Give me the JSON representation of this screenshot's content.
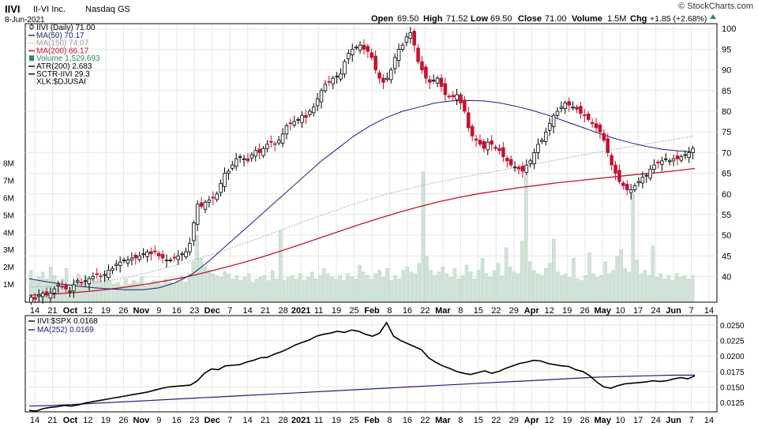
{
  "header": {
    "symbol": "IIVI",
    "company": "II-VI Inc.",
    "exchange": "Nasdaq GS",
    "date": "8-Jun-2021",
    "open_label": "Open",
    "open": "69.50",
    "high_label": "High",
    "high": "71.52",
    "low_label": "Low",
    "low": "69.50",
    "close_label": "Close",
    "close": "71.00",
    "volume_label": "Volume",
    "volume": "1.5M",
    "chg_label": "Chg",
    "chg": "+1.85 (+2.68%)",
    "watermark": "© StockCharts.com"
  },
  "legend_main": [
    {
      "text": "IIVI (Daily) 71.00",
      "color": "#000000",
      "swatch": "candle"
    },
    {
      "text": "MA(50) 70.17",
      "color": "#1a1f7a",
      "swatch": "line"
    },
    {
      "text": "MA(150) 74.07",
      "color": "#999999",
      "swatch": "dotted"
    },
    {
      "text": "MA(200) 66.17",
      "color": "#c8102e",
      "swatch": "line"
    },
    {
      "text": "Volume 1,529,693",
      "color": "#2e8b57",
      "swatch": "bar"
    },
    {
      "text": "ATR(200) 2.683",
      "color": "#000000",
      "swatch": "line"
    },
    {
      "text": "SCTR-IIVI 29.3",
      "color": "#000000",
      "swatch": "line"
    },
    {
      "text": "XLK:$DJUSAI",
      "color": "#000000",
      "swatch": "none"
    }
  ],
  "legend_lower": [
    {
      "text": "IIVI:$SPX 0.0168",
      "color": "#000000"
    },
    {
      "text": "MA(252) 0.0169",
      "color": "#1a1f7a"
    }
  ],
  "colors": {
    "up": "#000000",
    "down": "#c8102e",
    "ma50": "#1a1f7a",
    "ma150": "#999999",
    "ma200": "#c8102e",
    "volume": "#cfe3d6",
    "grid": "#e6e6e6",
    "ratio": "#000000",
    "ma252": "#1a1f7a"
  },
  "x_axis": {
    "labels": [
      "14",
      "21",
      "Oct",
      "12",
      "19",
      "26",
      "Nov",
      "9",
      "16",
      "23",
      "Dec",
      "7",
      "14",
      "21",
      "28",
      "2021",
      "11",
      "19",
      "25",
      "Feb",
      "8",
      "16",
      "22",
      "Mar",
      "8",
      "15",
      "22",
      "29",
      "Apr",
      "12",
      "19",
      "26",
      "May",
      "10",
      "17",
      "24",
      "Jun",
      "7",
      "14"
    ],
    "bold_labels": [
      "Oct",
      "Nov",
      "Dec",
      "2021",
      "Feb",
      "Mar",
      "Apr",
      "May",
      "Jun"
    ]
  },
  "chart_data": [
    {
      "type": "candlestick",
      "title": "IIVI II-VI Inc. Nasdaq GS",
      "price_axis": {
        "ticks": [
          40,
          45,
          50,
          55,
          60,
          65,
          70,
          75,
          80,
          85,
          90,
          95,
          100
        ],
        "range": [
          34,
          101
        ]
      },
      "volume_axis": {
        "ticks": [
          "1M",
          "2M",
          "3M",
          "4M",
          "5M",
          "6M",
          "7M",
          "8M"
        ],
        "range_millions": [
          0,
          16
        ]
      },
      "closes": [
        35,
        34.5,
        35.5,
        36,
        35.5,
        36,
        37,
        38,
        37.5,
        37,
        36.5,
        38,
        39,
        38.5,
        39,
        39.5,
        40,
        40.5,
        40,
        40.5,
        41.5,
        42,
        43,
        43.5,
        44,
        44,
        44.5,
        44.5,
        45,
        45.5,
        46,
        45.5,
        46,
        45,
        44.5,
        44,
        44,
        44.5,
        45,
        45.5,
        46,
        48,
        53,
        57.5,
        57,
        58,
        58.5,
        59,
        60,
        62.5,
        65,
        65.5,
        67,
        68.5,
        69,
        68.5,
        68,
        69.5,
        70.5,
        70,
        71,
        72,
        72.5,
        72,
        73,
        74.5,
        76.5,
        77,
        77.5,
        78,
        79,
        78.5,
        80,
        81,
        83,
        85,
        86.5,
        87,
        88,
        88.5,
        89,
        92,
        94,
        95,
        95.5,
        96,
        95,
        94.5,
        93,
        90,
        88,
        87,
        88,
        90,
        93,
        95,
        96,
        98,
        99,
        96,
        92,
        90,
        88,
        87,
        87.5,
        88,
        86,
        84,
        83.5,
        83.5,
        84,
        82,
        80,
        76,
        74,
        73,
        72,
        71,
        72.5,
        72,
        71,
        70.5,
        69,
        68,
        67,
        66.5,
        66,
        65.5,
        67,
        68,
        70,
        72,
        73,
        75,
        77,
        79,
        80,
        81,
        82,
        81.5,
        81,
        80.5,
        79.5,
        79,
        78,
        77,
        76,
        75,
        73,
        70,
        67,
        65,
        63,
        62,
        61,
        61,
        62,
        63,
        64,
        64.5,
        66,
        67,
        67.5,
        68,
        68.5,
        68,
        68.5,
        68.5,
        69,
        69.5,
        70,
        71
      ],
      "volume_millions": [
        1.8,
        1.2,
        1.4,
        1.7,
        1.3,
        2.0,
        1.5,
        1.1,
        1.3,
        1.9,
        1.0,
        1.2,
        1.6,
        1.1,
        1.4,
        1.0,
        1.2,
        1.3,
        1.1,
        1.5,
        1.2,
        1.0,
        1.1,
        0.9,
        1.3,
        1.0,
        1.2,
        1.1,
        1.4,
        0.9,
        1.0,
        1.2,
        1.1,
        1.0,
        1.3,
        1.1,
        1.0,
        1.2,
        1.5,
        1.1,
        1.6,
        2.3,
        3.8,
        2.5,
        2.0,
        1.8,
        1.6,
        1.5,
        1.4,
        1.7,
        1.6,
        1.3,
        1.5,
        1.2,
        1.4,
        1.6,
        1.1,
        1.3,
        1.4,
        1.5,
        1.2,
        1.8,
        1.3,
        4.1,
        1.2,
        1.4,
        1.5,
        1.3,
        1.6,
        1.2,
        1.4,
        1.7,
        1.3,
        1.5,
        1.9,
        1.6,
        1.4,
        1.3,
        1.5,
        1.2,
        1.6,
        1.4,
        1.3,
        2.1,
        1.7,
        1.5,
        1.3,
        1.6,
        1.8,
        1.4,
        1.9,
        1.2,
        1.5,
        1.3,
        1.8,
        2.0,
        1.7,
        1.6,
        2.2,
        7.5,
        2.6,
        1.8,
        1.5,
        1.7,
        2.0,
        1.6,
        1.4,
        1.9,
        1.3,
        1.5,
        2.1,
        1.7,
        1.3,
        1.8,
        2.5,
        1.6,
        1.4,
        1.8,
        2.2,
        1.5,
        3.1,
        2.0,
        1.7,
        1.6,
        3.5,
        7.3,
        2.3,
        1.8,
        1.6,
        1.5,
        1.9,
        2.2,
        3.6,
        1.7,
        1.5,
        1.6,
        1.4,
        2.5,
        1.3,
        1.2,
        1.5,
        2.8,
        1.6,
        1.4,
        1.5,
        2.3,
        1.6,
        1.8,
        2.6,
        3.0,
        1.9,
        1.7,
        6.2,
        2.4,
        1.6,
        1.8,
        1.5,
        3.2,
        1.4,
        1.6,
        1.3,
        1.5,
        1.2,
        1.6,
        1.4,
        1.5,
        1.3,
        1.5
      ],
      "ma50": [
        39.5,
        38.8,
        38.2,
        37.7,
        37.3,
        37,
        36.8,
        36.8,
        37.3,
        38.5,
        40.5,
        43.5,
        47,
        50.5,
        54,
        57.5,
        61,
        64.5,
        68,
        71,
        74,
        76.5,
        78.5,
        80,
        81,
        82,
        82.5,
        82.6,
        82.5,
        82,
        81.2,
        80.2,
        79,
        77.6,
        76.2,
        74.8,
        73.5,
        72.4,
        71.5,
        70.8,
        70.4,
        70.2
      ],
      "ma150": [
        37.5,
        37.6,
        37.9,
        38.4,
        39.1,
        40,
        41.1,
        42.4,
        43.8,
        45.3,
        46.9,
        48.6,
        50.4,
        52.2,
        54,
        55.7,
        57.4,
        58.9,
        60.3,
        61.5,
        62.6,
        63.6,
        64.5,
        65.4,
        66.3,
        67.2,
        68.1,
        69,
        69.9,
        70.8,
        71.6,
        72.4,
        73.2,
        74.07
      ],
      "ma200": [
        35.5,
        35.7,
        36,
        36.4,
        36.9,
        37.5,
        38.2,
        39,
        39.9,
        41,
        42.2,
        43.5,
        44.9,
        46.4,
        48,
        49.6,
        51.2,
        52.8,
        54.3,
        55.7,
        57,
        58.2,
        59.2,
        60.1,
        60.8,
        61.5,
        62.1,
        62.7,
        63.2,
        63.7,
        64.2,
        64.7,
        65.1,
        65.6,
        66.17
      ]
    },
    {
      "type": "line",
      "title": "IIVI:$SPX 0.0168",
      "y_axis": {
        "ticks": [
          0.0125,
          0.015,
          0.0175,
          0.02,
          0.0225,
          0.025
        ],
        "range": [
          0.0111,
          0.0264
        ]
      },
      "ratio": [
        0.0112,
        0.0111,
        0.0115,
        0.0117,
        0.0118,
        0.012,
        0.0119,
        0.0121,
        0.0124,
        0.0126,
        0.0128,
        0.013,
        0.0132,
        0.0134,
        0.0136,
        0.0138,
        0.014,
        0.0142,
        0.0145,
        0.0148,
        0.015,
        0.0151,
        0.0152,
        0.0153,
        0.016,
        0.0172,
        0.0179,
        0.0178,
        0.0184,
        0.0185,
        0.0186,
        0.019,
        0.0193,
        0.0197,
        0.0198,
        0.0203,
        0.0207,
        0.0212,
        0.0218,
        0.0222,
        0.0226,
        0.0232,
        0.0235,
        0.0237,
        0.024,
        0.0238,
        0.0242,
        0.024,
        0.0235,
        0.0232,
        0.0237,
        0.0254,
        0.0232,
        0.0225,
        0.022,
        0.0215,
        0.021,
        0.0197,
        0.019,
        0.0184,
        0.018,
        0.0175,
        0.0172,
        0.017,
        0.0173,
        0.0176,
        0.0172,
        0.0175,
        0.018,
        0.0184,
        0.0188,
        0.019,
        0.0193,
        0.0192,
        0.0188,
        0.0186,
        0.0184,
        0.0183,
        0.0178,
        0.0175,
        0.0168,
        0.0158,
        0.015,
        0.0148,
        0.0152,
        0.0155,
        0.0156,
        0.0157,
        0.0158,
        0.016,
        0.0159,
        0.016,
        0.0163,
        0.0165,
        0.0163,
        0.0168
      ],
      "ma252": [
        0.0119,
        0.012,
        0.0122,
        0.0124,
        0.0126,
        0.0128,
        0.013,
        0.0132,
        0.0134,
        0.0136,
        0.0138,
        0.014,
        0.0142,
        0.0144,
        0.0146,
        0.0148,
        0.015,
        0.0152,
        0.0154,
        0.0156,
        0.0158,
        0.016,
        0.0162,
        0.0164,
        0.0166,
        0.0167,
        0.0168,
        0.0169,
        0.0169
      ]
    }
  ]
}
